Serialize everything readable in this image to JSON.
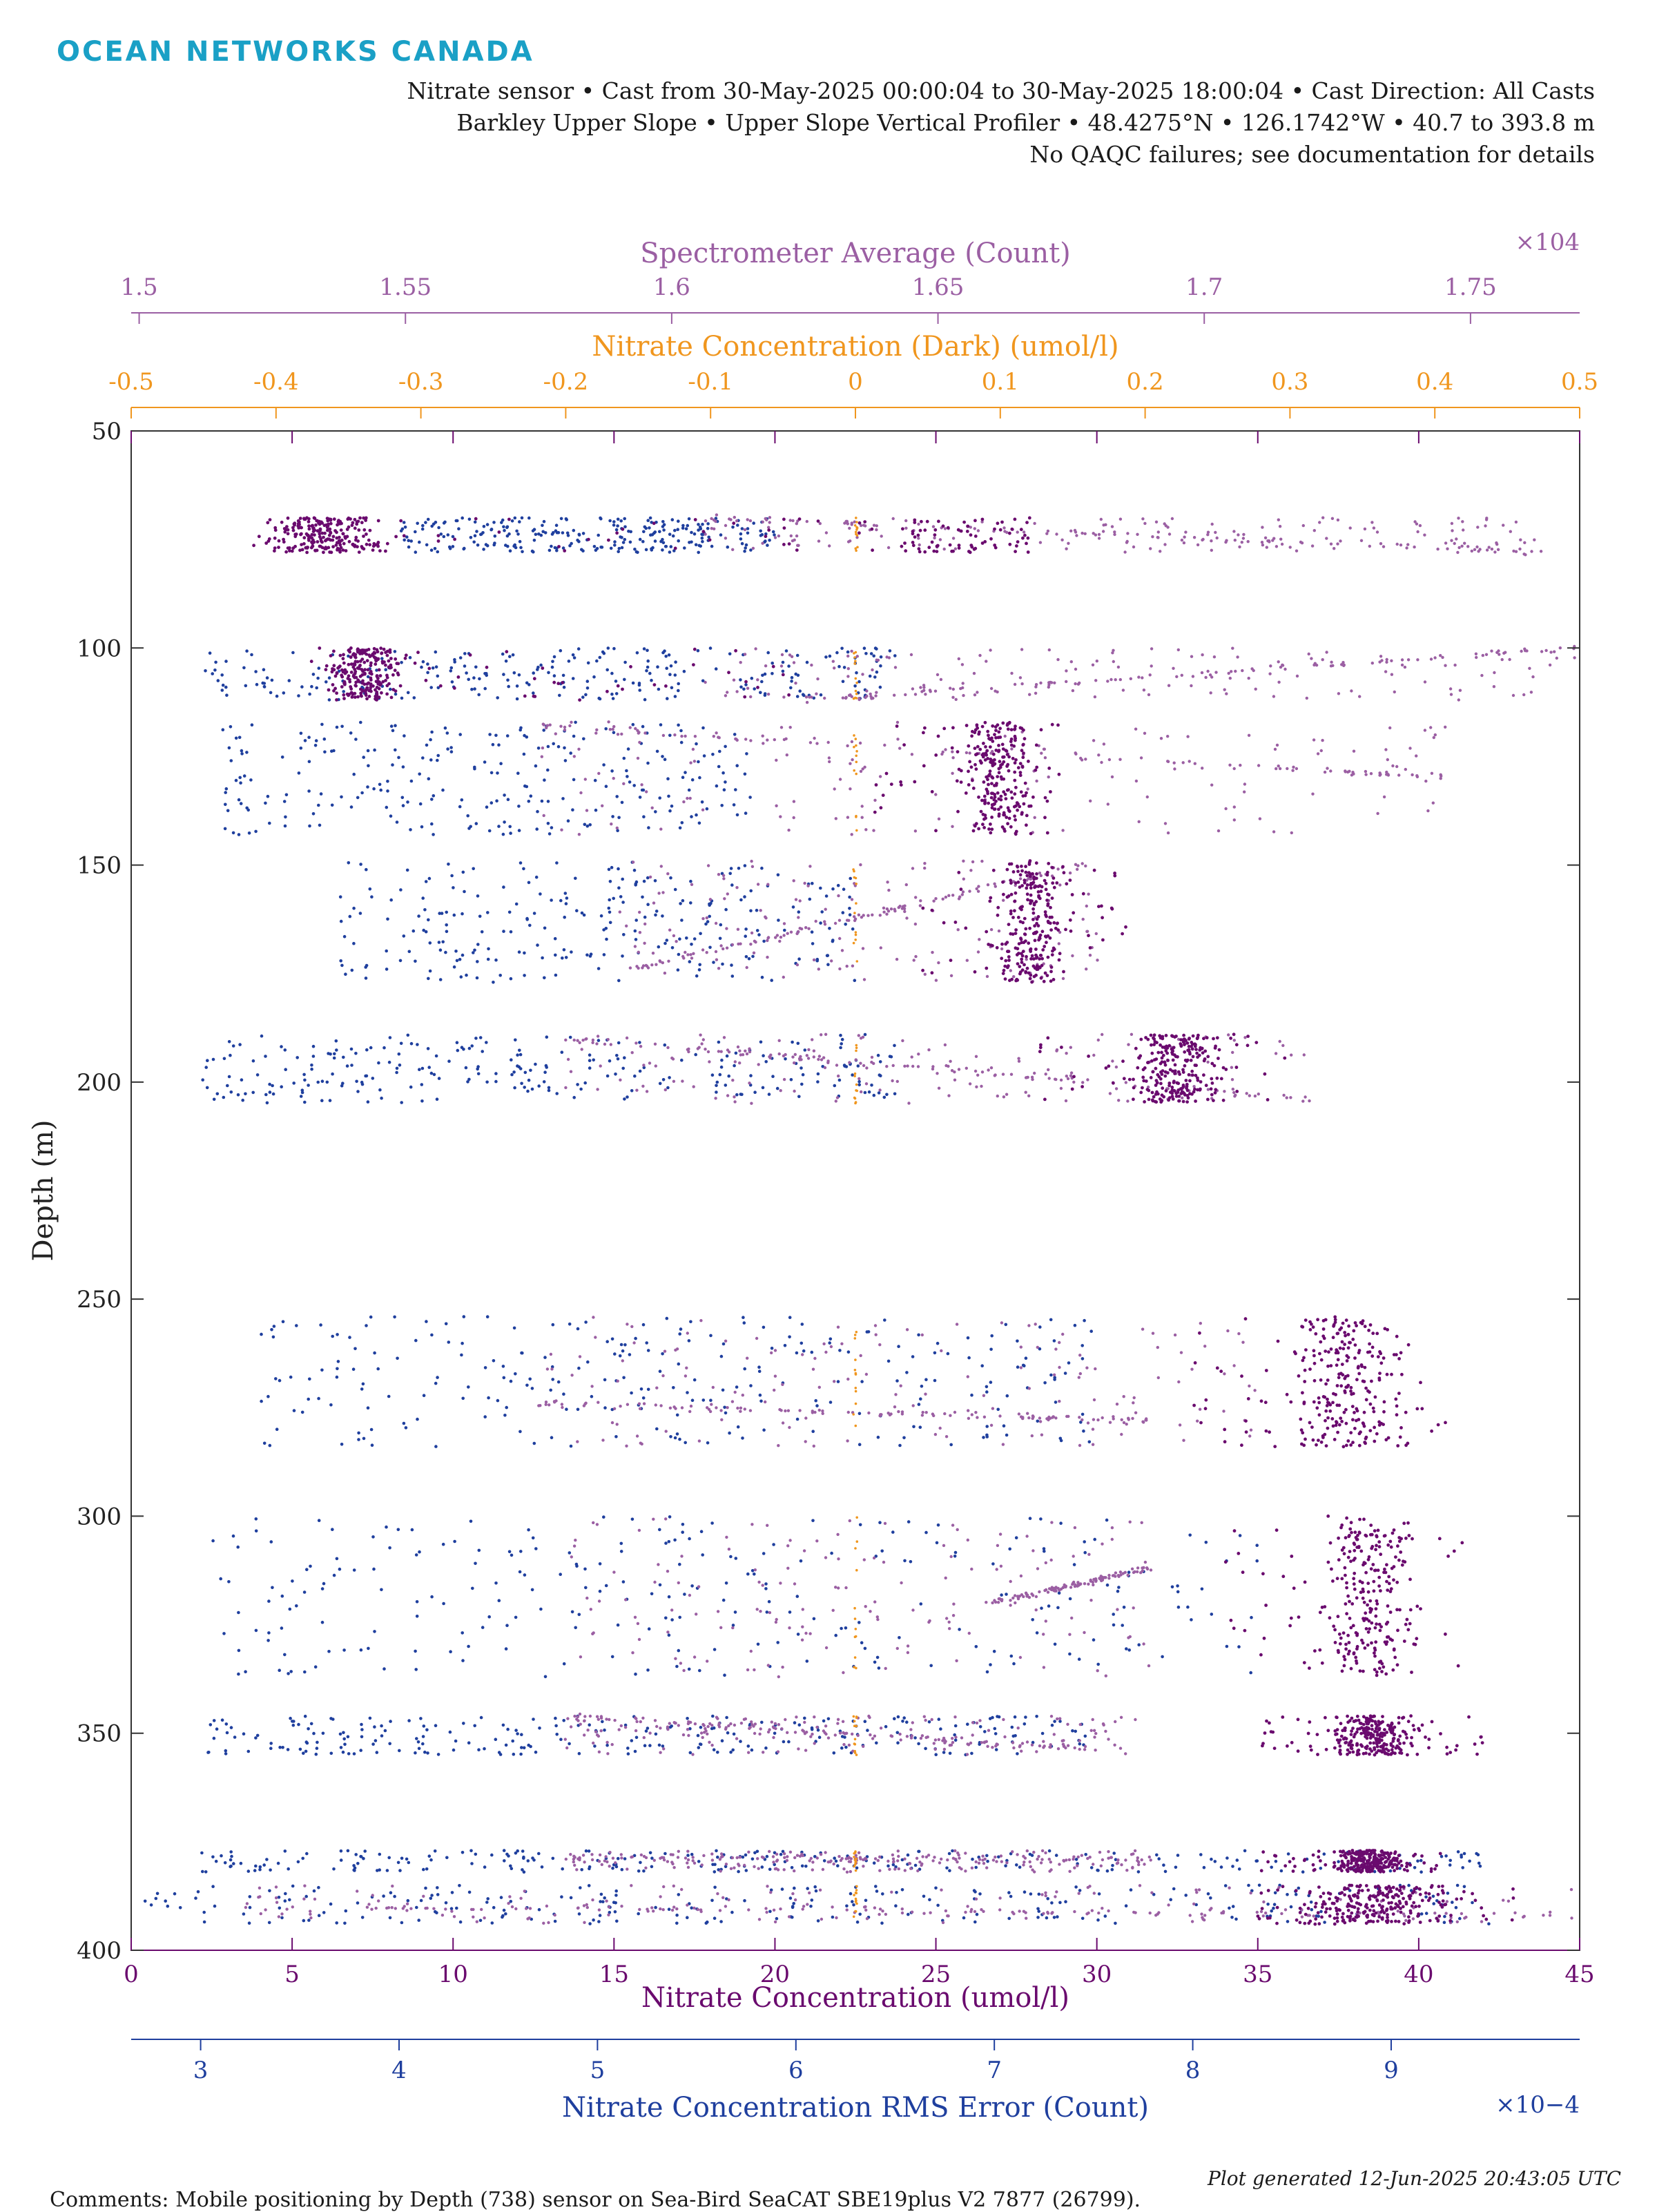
{
  "header": {
    "logo": "OCEAN NETWORKS CANADA",
    "line1": "Nitrate sensor • Cast from 30-May-2025 00:00:04 to 30-May-2025 18:00:04 • Cast Direction: All Casts",
    "line2": "Barkley Upper Slope • Upper Slope Vertical Profiler • 48.4275°N • 126.1742°W • 40.7 to 393.8 m",
    "line3": "No QAQC failures; see documentation for details"
  },
  "footer": {
    "comments": "Comments: Mobile positioning by Depth (738) sensor on Sea-Bird SeaCAT SBE19plus V2 7877 (26799).",
    "generated": "Plot generated 12-Jun-2025 20:43:05 UTC"
  },
  "colors": {
    "nitrate": "#6a0a6e",
    "rms_error": "#1f3f9e",
    "spectrometer": "#9b5fa3",
    "dark": "#f0961e",
    "axis": "#333333"
  },
  "chart_data": {
    "type": "scatter",
    "ylabel": "Depth (m)",
    "ylim": [
      400,
      50
    ],
    "y_reversed": true,
    "yticks": [
      "50",
      "100",
      "150",
      "200",
      "250",
      "300",
      "350",
      "400"
    ],
    "axes": {
      "nitrate": {
        "label": "Nitrate Concentration (umol/l)",
        "range": [
          0,
          45
        ],
        "ticks": [
          "0",
          "5",
          "10",
          "15",
          "20",
          "25",
          "30",
          "35",
          "40",
          "45"
        ]
      },
      "rms_error": {
        "label": "Nitrate Concentration RMS Error (Count)",
        "exponent": "×10−4",
        "range": [
          2.65,
          9.95
        ],
        "ticks": [
          "3",
          "4",
          "5",
          "6",
          "7",
          "8",
          "9"
        ]
      },
      "spectrometer": {
        "label": "Spectrometer Average (Count)",
        "exponent": "×104",
        "range": [
          1.4985,
          1.7705
        ],
        "ticks": [
          "1.5",
          "1.55",
          "1.6",
          "1.65",
          "1.7",
          "1.75"
        ]
      },
      "dark": {
        "label": "Nitrate Concentration (Dark) (umol/l)",
        "range": [
          -0.5,
          0.5
        ],
        "ticks": [
          "-0.5",
          "-0.4",
          "-0.3",
          "-0.2",
          "-0.1",
          "0",
          "0.1",
          "0.2",
          "0.3",
          "0.4",
          "0.5"
        ]
      }
    },
    "clusters": [
      {
        "depth": [
          70,
          78
        ],
        "nitrate": [
          3.5,
          25
        ],
        "nitrate_core": [
          3.5,
          8.5
        ],
        "nitrate_core2": [
          24,
          28
        ],
        "rms": [
          4.0,
          5.9
        ],
        "spec": [
          1.606,
          1.765
        ],
        "spec_trend": [
          [
            1.605,
            70
          ],
          [
            1.765,
            78
          ]
        ],
        "dark": [
          0.0,
          0.0
        ]
      },
      {
        "depth": [
          100,
          112
        ],
        "nitrate": [
          5.5,
          21
        ],
        "nitrate_core": [
          5.8,
          8.8
        ],
        "rms": [
          3.0,
          6.5
        ],
        "spec": [
          1.606,
          1.77
        ],
        "spec_trend": [
          [
            1.625,
            112
          ],
          [
            1.77,
            100
          ]
        ],
        "dark": [
          0.0,
          0.0
        ]
      },
      {
        "depth": [
          117,
          143
        ],
        "nitrate": [
          23,
          29
        ],
        "nitrate_core": [
          25.5,
          28.5
        ],
        "rms": [
          3.1,
          5.8
        ],
        "spec": [
          1.575,
          1.746
        ],
        "spec_trend": [
          [
            1.575,
            118
          ],
          [
            1.746,
            130
          ]
        ],
        "dark": [
          0.0,
          0.0
        ]
      },
      {
        "depth": [
          149,
          177
        ],
        "nitrate": [
          24.5,
          31
        ],
        "nitrate_core": [
          26.5,
          29.5
        ],
        "rms": [
          3.7,
          6.3
        ],
        "spec": [
          1.59,
          1.68
        ],
        "spec_trend": [
          [
            1.592,
            174
          ],
          [
            1.678,
            150
          ]
        ],
        "dark": [
          0.0,
          0.0
        ]
      },
      {
        "depth": [
          189,
          205
        ],
        "nitrate": [
          28,
          36
        ],
        "nitrate_core": [
          30.5,
          34.5
        ],
        "rms": [
          3.0,
          6.5
        ],
        "spec": [
          1.58,
          1.72
        ],
        "spec_trend": [
          [
            1.58,
            190
          ],
          [
            1.72,
            204
          ]
        ],
        "dark": [
          0.0,
          0.0
        ]
      },
      {
        "depth": [
          254,
          284
        ],
        "nitrate": [
          33,
          41
        ],
        "nitrate_core": [
          35.5,
          40
        ],
        "rms": [
          3.3,
          7.5
        ],
        "spec": [
          1.575,
          1.71
        ],
        "spec_trend": [
          [
            1.575,
            274
          ],
          [
            1.69,
            278
          ]
        ],
        "dark": [
          0.0,
          0.0
        ]
      },
      {
        "depth": [
          300,
          337
        ],
        "nitrate": [
          34,
          41.5
        ],
        "nitrate_core": [
          36.5,
          40.5
        ],
        "rms": [
          3.0,
          8.4
        ],
        "spec": [
          1.58,
          1.69
        ],
        "spec_trend": [
          [
            1.66,
            320
          ],
          [
            1.69,
            312
          ]
        ],
        "dark": [
          0.0,
          0.0
        ]
      },
      {
        "depth": [
          346,
          355
        ],
        "nitrate": [
          35,
          42
        ],
        "nitrate_core": [
          36.5,
          40.5
        ],
        "rms": [
          3.0,
          7.5
        ],
        "spec": [
          1.58,
          1.69
        ],
        "spec_trend": [
          [
            1.58,
            346
          ],
          [
            1.68,
            354
          ]
        ],
        "dark": [
          0.0,
          0.0
        ]
      },
      {
        "depth": [
          377,
          382
        ],
        "nitrate": [
          35,
          41
        ],
        "nitrate_core": [
          37,
          40
        ],
        "rms": [
          3.0,
          9.5
        ],
        "spec": [
          1.58,
          1.69
        ],
        "spec_trend": [
          [
            1.58,
            379
          ],
          [
            1.69,
            379
          ]
        ],
        "dark": [
          0.0,
          0.0
        ]
      },
      {
        "depth": [
          385,
          394
        ],
        "nitrate": [
          35,
          43
        ],
        "nitrate_core": [
          35.5,
          41.5
        ],
        "rms": [
          2.7,
          9.5
        ],
        "spec": [
          1.52,
          1.77
        ],
        "spec_trend": [
          [
            1.52,
            390
          ],
          [
            1.77,
            392
          ]
        ],
        "dark": [
          0.0,
          0.0
        ]
      }
    ]
  }
}
